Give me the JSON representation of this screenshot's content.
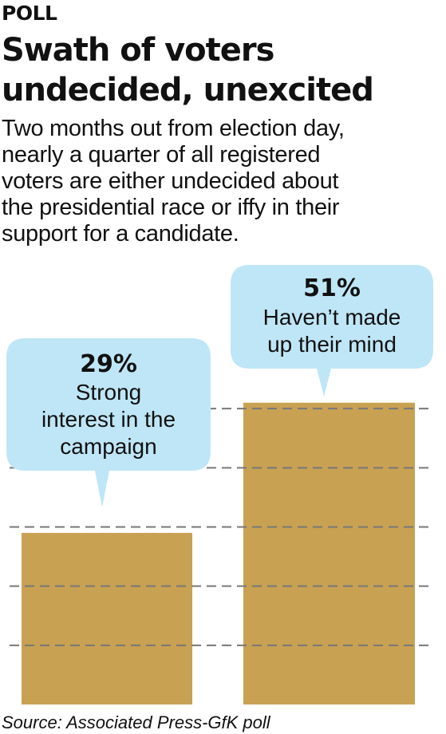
{
  "header": {
    "kicker": "POLL",
    "headline_lines": [
      "Swath of voters",
      "undecided, unexcited"
    ],
    "dek_lines": [
      "Two months out from election day,",
      "nearly a quarter of all registered",
      "voters are either undecided about",
      "the presidential race or iffy in their",
      "support for a candidate."
    ]
  },
  "chart_data": {
    "type": "bar",
    "categories": [
      "Strong interest in the campaign",
      "Haven't made up their mind"
    ],
    "values": [
      29,
      51
    ],
    "value_labels": [
      "29%",
      "51%"
    ],
    "callouts": [
      {
        "value_label": "29%",
        "lines": [
          "Strong",
          "interest in the",
          "campaign"
        ]
      },
      {
        "value_label": "51%",
        "lines": [
          "Haven’t made",
          "up their mind"
        ]
      }
    ],
    "unit": "%",
    "ylim": [
      0,
      60
    ],
    "grid": true,
    "bar_color": "#c8a153",
    "callout_color": "#bfe6f6",
    "grid_color": "#777777"
  },
  "footer": {
    "source": "Source: Associated Press-GfK poll"
  }
}
